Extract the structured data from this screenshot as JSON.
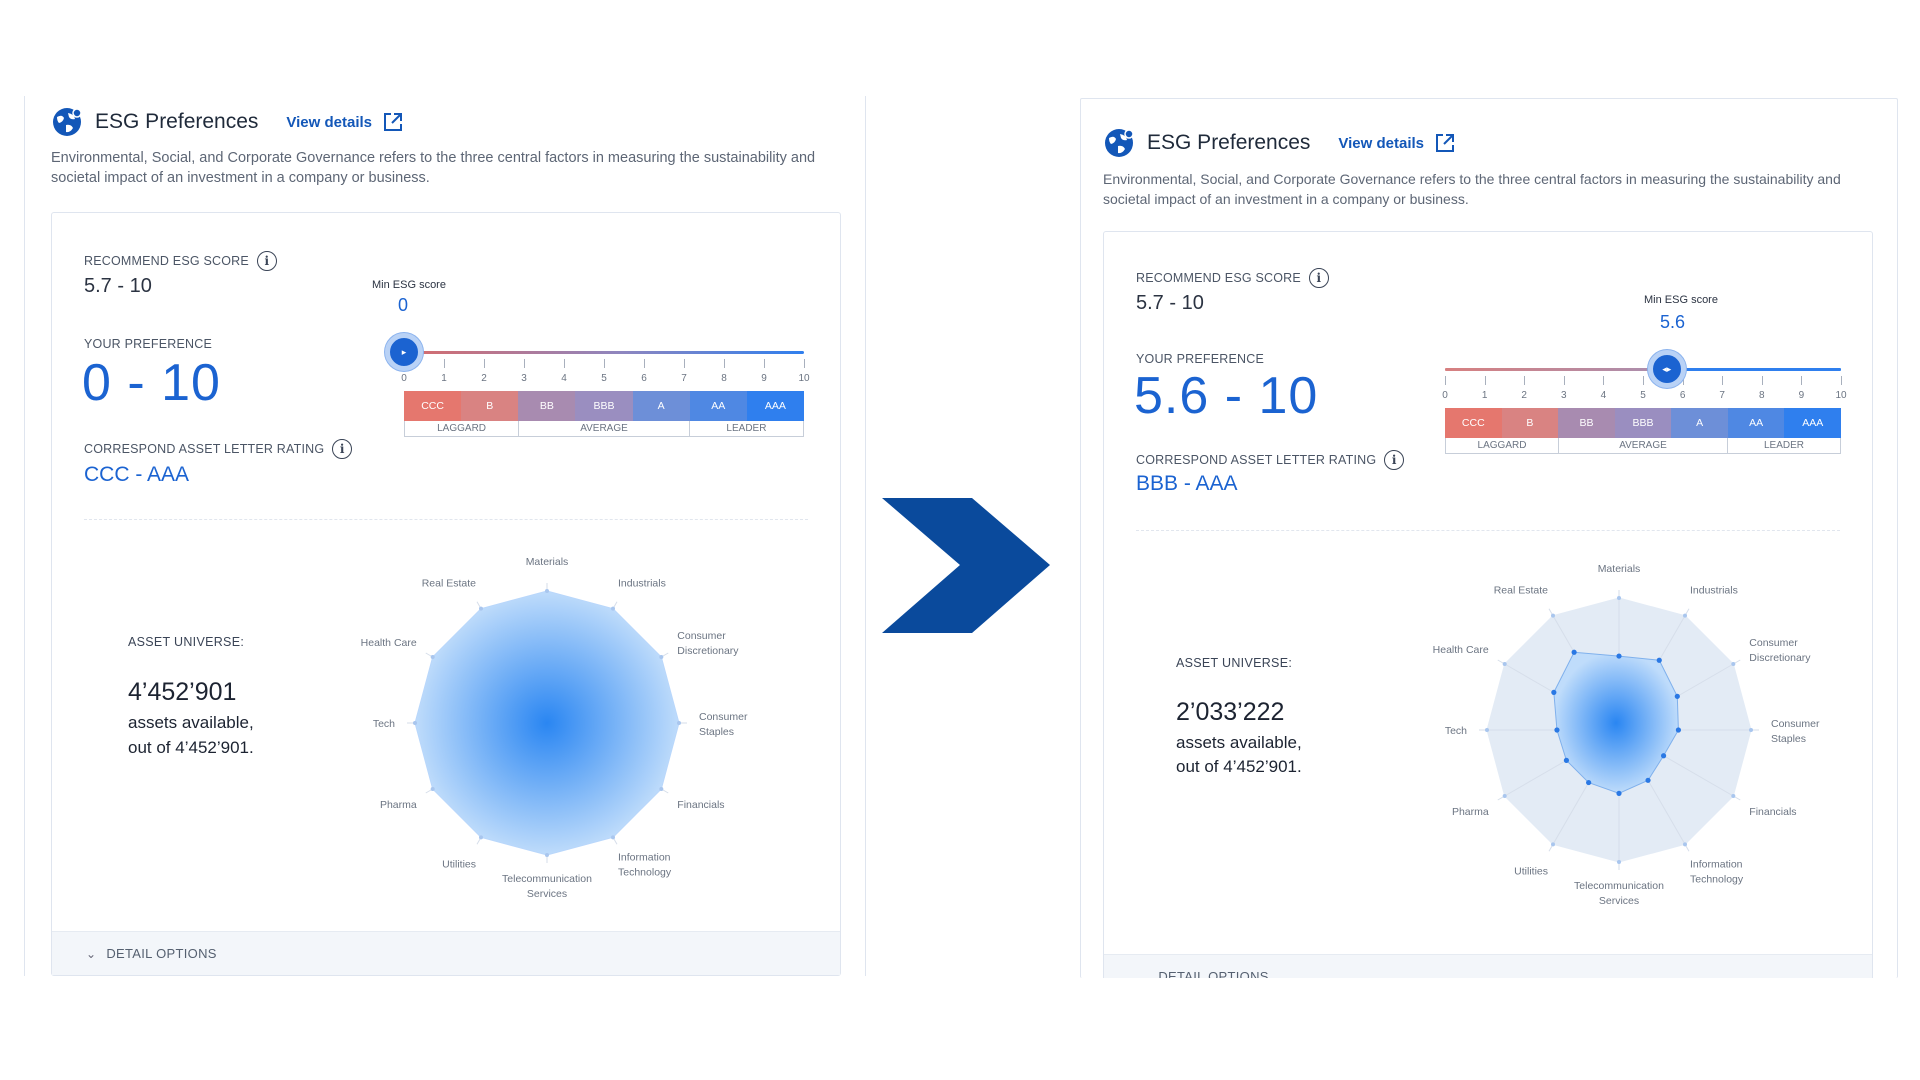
{
  "colors": {
    "accent": "#1b63d1",
    "arrow": "#0a4a9c"
  },
  "axis_categories": [
    "Materials",
    "Industrials",
    "Consumer Discretionary",
    "Consumer Staples",
    "Financials",
    "Information Technology",
    "Telecommunication Services",
    "Utilities",
    "Pharma",
    "Tech",
    "Health Care",
    "Real Estate"
  ],
  "before": {
    "title": "ESG Preferences",
    "view_details": "View details",
    "description": "Environmental, Social, and Corporate Governance refers to the three central factors in measuring the sustainability and societal impact of an investment in a company or business.",
    "recommend_label": "RECOMMEND ESG SCORE",
    "recommend_value": "5.7 - 10",
    "preference_label": "YOUR PREFERENCE",
    "preference_value": "0 - 10",
    "rating_label": "CORRESPOND ASSET LETTER RATING",
    "rating_value": "CCC - AAA",
    "slider_title": "Min ESG score",
    "slider_value": "0",
    "slider_level": 0,
    "ticks": [
      "0",
      "1",
      "2",
      "3",
      "4",
      "5",
      "6",
      "7",
      "8",
      "9",
      "10"
    ],
    "ratings": [
      "CCC",
      "B",
      "BB",
      "BBB",
      "A",
      "AA",
      "AAA"
    ],
    "groups": [
      "LAGGARD",
      "AVERAGE",
      "LEADER"
    ],
    "universe_label": "ASSET UNIVERSE:",
    "universe_count": "4’452’901",
    "universe_line1": "assets available,",
    "universe_line2": "out of 4’452’901.",
    "detail_options": "DETAIL OPTIONS",
    "radar_levels": [
      1,
      1,
      1,
      1,
      1,
      1,
      1,
      1,
      1,
      1,
      1,
      1
    ]
  },
  "after": {
    "title": "ESG Preferences",
    "view_details": "View details",
    "description": "Environmental, Social, and Corporate Governance refers to the three central factors in measuring the sustainability and societal impact of an investment in a company or business.",
    "recommend_label": "RECOMMEND ESG SCORE",
    "recommend_value": "5.7 - 10",
    "preference_label": "YOUR PREFERENCE",
    "preference_value": "5.6 - 10",
    "rating_label": "CORRESPOND ASSET LETTER RATING",
    "rating_value": "BBB - AAA",
    "slider_title": "Min ESG score",
    "slider_value": "5.6",
    "slider_level": 5.6,
    "ticks": [
      "0",
      "1",
      "2",
      "3",
      "4",
      "5",
      "6",
      "7",
      "8",
      "9",
      "10"
    ],
    "ratings": [
      "CCC",
      "B",
      "BB",
      "BBB",
      "A",
      "AA",
      "AAA"
    ],
    "groups": [
      "LAGGARD",
      "AVERAGE",
      "LEADER"
    ],
    "universe_label": "ASSET UNIVERSE:",
    "universe_count": "2’033’222",
    "universe_line1": "assets available,",
    "universe_line2": "out of 4’452’901.",
    "detail_options": "DETAIL OPTIONS",
    "radar_levels": [
      0.56,
      0.61,
      0.51,
      0.45,
      0.39,
      0.44,
      0.48,
      0.46,
      0.46,
      0.47,
      0.57,
      0.68
    ]
  }
}
